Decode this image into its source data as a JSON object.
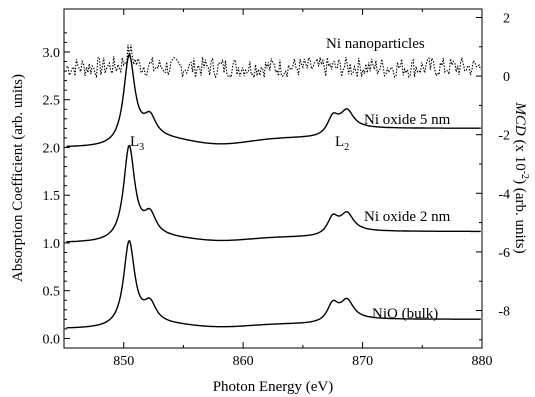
{
  "chart_data": {
    "type": "line",
    "xlabel": "Photon Energy (eV)",
    "ylabel_left": "Absorption Coefficient (arb. units)",
    "ylabel_right": {
      "pre": "MCD",
      "mid": " (x 10",
      "sup": "-2",
      "post": ") (arb. units)"
    },
    "xlim": [
      845,
      880
    ],
    "ylim_left": [
      -0.1,
      3.45
    ],
    "ylim_right": [
      -9.28,
      2.29
    ],
    "x_ticks": [
      "850",
      "860",
      "870",
      "880"
    ],
    "y_ticks_left": [
      "0.0",
      "0.5",
      "1.0",
      "1.5",
      "2.0",
      "2.5",
      "3.0"
    ],
    "y_ticks_right": [
      "2",
      "0",
      "-2",
      "-4",
      "-6",
      "-8"
    ],
    "annotations": {
      "L3": {
        "main": "L",
        "sub": "3"
      },
      "L2": {
        "main": "L",
        "sub": "2"
      }
    },
    "series": [
      {
        "name": "Ni nanoparticles",
        "axis": "right",
        "style": "dotted",
        "baseline": 0.3,
        "noise_amplitude": 0.35,
        "peak_x": 850.5,
        "peak_value": 0.85
      },
      {
        "name": "Ni oxide 5 nm",
        "axis": "left",
        "offset": 2.0,
        "edge_jump": 0.2,
        "L3_peak": 3.0,
        "L2_peak": 2.38
      },
      {
        "name": "Ni oxide 2 nm",
        "axis": "left",
        "offset": 1.0,
        "edge_jump": 0.12,
        "L3_peak": 2.03,
        "L2_peak": 1.3
      },
      {
        "name": "NiO (bulk)",
        "axis": "left",
        "offset": 0.1,
        "edge_jump": 0.1,
        "L3_peak": 1.03,
        "L2_peak": 0.39
      }
    ]
  }
}
